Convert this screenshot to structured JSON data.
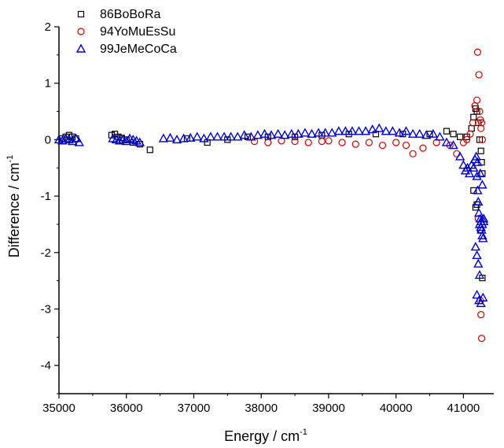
{
  "chart_data": {
    "type": "scatter",
    "xlabel": "Energy / cm",
    "xlabel_sup": "-1",
    "ylabel": "Difference / cm",
    "ylabel_sup": "-1",
    "xlim": [
      35000,
      41450
    ],
    "ylim": [
      -4.5,
      2
    ],
    "xticks": [
      35000,
      36000,
      37000,
      38000,
      39000,
      40000,
      41000
    ],
    "xtick_labels": [
      "35000",
      "36000",
      "37000",
      "38000",
      "39000",
      "40000",
      "41000"
    ],
    "yticks": [
      2,
      1,
      0,
      -1,
      -2,
      -3,
      -4
    ],
    "ytick_labels": [
      "2",
      "1",
      "0",
      "-1",
      "-2",
      "-3",
      "-4"
    ],
    "legend_position": "top-left",
    "series": [
      {
        "name": "86BoBoRa",
        "marker": "square",
        "color": "#000000",
        "x": [
          35050,
          35100,
          35150,
          35200,
          35250,
          35780,
          35830,
          35880,
          35930,
          36000,
          36100,
          36200,
          36350,
          36900,
          37200,
          37500,
          37800,
          38100,
          38500,
          38900,
          39300,
          39700,
          40100,
          40500,
          40750,
          40850,
          40950,
          41050,
          41120,
          41150,
          41180,
          41200,
          41220,
          41240,
          41260,
          41270,
          41280,
          41150,
          41200,
          41250,
          41180,
          41280
        ],
        "y": [
          0.02,
          0.05,
          0.08,
          0.05,
          0.02,
          0.08,
          0.1,
          0.05,
          0.03,
          0.0,
          -0.05,
          -0.08,
          -0.18,
          0.02,
          -0.05,
          0.0,
          0.05,
          0.05,
          0.05,
          0.08,
          0.1,
          0.1,
          0.1,
          0.1,
          0.15,
          0.1,
          0.05,
          0.05,
          0.2,
          0.4,
          0.55,
          0.5,
          0.3,
          0.0,
          -0.2,
          -0.4,
          -0.6,
          -0.9,
          -1.15,
          -1.6,
          -1.2,
          -2.45
        ]
      },
      {
        "name": "94YoMuEsSu",
        "marker": "circle",
        "color": "#cc0000",
        "x": [
          37900,
          38100,
          38300,
          38500,
          38700,
          38900,
          39000,
          39200,
          39400,
          39600,
          39800,
          40000,
          40150,
          40250,
          40400,
          40600,
          40800,
          40900,
          41000,
          41050,
          41100,
          41140,
          41170,
          41200,
          41210,
          41230,
          41240,
          41250,
          41260,
          41270,
          41280,
          41250,
          41260,
          41270,
          41220
        ],
        "y": [
          -0.03,
          -0.05,
          -0.02,
          -0.03,
          -0.05,
          -0.03,
          -0.02,
          -0.05,
          -0.08,
          -0.05,
          -0.1,
          -0.05,
          -0.1,
          -0.25,
          -0.15,
          -0.05,
          -0.1,
          -0.25,
          -0.05,
          0.0,
          0.1,
          0.3,
          0.6,
          0.7,
          1.55,
          1.15,
          0.5,
          0.35,
          0.2,
          0.3,
          0.0,
          -2.85,
          -3.1,
          -3.52,
          -1.4
        ]
      },
      {
        "name": "99JeMeCoCa",
        "marker": "triangle",
        "color": "#0000cc",
        "x": [
          35000,
          35050,
          35100,
          35150,
          35200,
          35250,
          35300,
          35800,
          35850,
          35900,
          35950,
          36000,
          36050,
          36100,
          36150,
          36200,
          36550,
          36650,
          36750,
          36850,
          36950,
          37050,
          37150,
          37250,
          37350,
          37450,
          37550,
          37650,
          37750,
          37850,
          37950,
          38050,
          38150,
          38250,
          38350,
          38450,
          38550,
          38650,
          38750,
          38850,
          38950,
          39050,
          39150,
          39250,
          39350,
          39450,
          39550,
          39650,
          39750,
          39850,
          39950,
          40050,
          40150,
          40250,
          40350,
          40450,
          40550,
          40650,
          40750,
          40850,
          40950,
          41000,
          41030,
          41060,
          41090,
          41120,
          41150,
          41170,
          41190,
          41200,
          41210,
          41220,
          41230,
          41240,
          41250,
          41260,
          41270,
          41280,
          41290,
          41300,
          41180,
          41200,
          41220,
          41240,
          41260,
          41280,
          41300,
          41200,
          41230,
          41260,
          41290,
          41210,
          41250,
          41280
        ],
        "y": [
          0.0,
          -0.02,
          0.02,
          0.0,
          -0.03,
          0.02,
          -0.05,
          0.02,
          0.0,
          -0.02,
          0.0,
          -0.03,
          0.02,
          0.0,
          -0.02,
          -0.05,
          0.02,
          0.03,
          0.0,
          0.02,
          0.03,
          0.05,
          0.02,
          0.05,
          0.05,
          0.05,
          0.05,
          0.05,
          0.08,
          0.05,
          0.08,
          0.1,
          0.08,
          0.1,
          0.08,
          0.1,
          0.1,
          0.12,
          0.1,
          0.12,
          0.12,
          0.12,
          0.15,
          0.15,
          0.15,
          0.15,
          0.15,
          0.18,
          0.2,
          0.15,
          0.15,
          0.12,
          0.15,
          0.1,
          0.1,
          0.08,
          0.1,
          0.05,
          -0.05,
          -0.1,
          -0.3,
          -0.45,
          -0.55,
          -0.5,
          -0.6,
          -0.45,
          -0.5,
          -0.35,
          -0.3,
          -0.65,
          -0.9,
          -1.1,
          -1.3,
          -1.5,
          -1.4,
          -1.45,
          -1.6,
          -1.7,
          -1.75,
          -1.4,
          -1.9,
          -2.05,
          -2.2,
          -2.4,
          -1.55,
          -1.5,
          -1.45,
          -2.75,
          -2.85,
          -2.9,
          -2.8,
          -0.4,
          -0.6,
          -0.8
        ]
      }
    ]
  }
}
